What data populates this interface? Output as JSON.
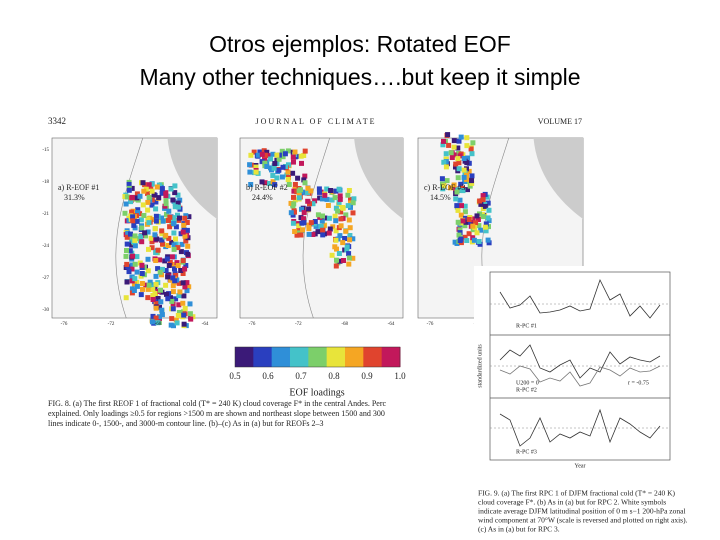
{
  "slide": {
    "title_line1": "Otros ejemplos: Rotated EOF",
    "title_line2": "Many other techniques….but keep it simple"
  },
  "figure": {
    "page_number": "3342",
    "journal": "JOURNAL OF CLIMATE",
    "volume": "VOLUME 17",
    "panels": [
      {
        "label": "a) R-EOF #1",
        "percent": "31.3%"
      },
      {
        "label": "b) R-EOF #2",
        "percent": "24.4%"
      },
      {
        "label": "c) R-EOF #3",
        "percent": "14.5%"
      }
    ],
    "lat_ticks": [
      "-15",
      "-18",
      "-21",
      "-24",
      "-27",
      "-30"
    ],
    "lon_ticks": [
      "-76",
      "-72",
      "-68",
      "-64"
    ],
    "colorbar_ticks": [
      "0.5",
      "0.6",
      "0.7",
      "0.8",
      "0.9",
      "1.0"
    ],
    "colorbar_label": "EOF loadings",
    "caption_lines": [
      "FIG. 8. (a) The first REOF 1 of fractional cold (T* = 240 K) cloud coverage F* in the central Andes. Perc",
      "explained. Only loadings ≥0.5 for regions >1500 m are shown and northeast slope between 1500 and 300",
      "lines indicate 0-, 1500-, and 3000-m contour line. (b)–(c) As in (a) but for REOFs 2–3"
    ]
  },
  "timeseries": {
    "y_label": "standardized units",
    "x_label": "Year",
    "legend": [
      "R-PC #1",
      "R-PC #2",
      "R-PC #3"
    ],
    "u200_label": "U200 = 0",
    "corr_label": "r = -0.75",
    "caption_lines": [
      "FIG. 9. (a) The first RPC 1 of DJFM fractional cold (T* = 240 K)",
      "cloud coverage F*. (b) As in (a) but for RPC 2. White symbols",
      "indicate average DJFM latitudinal position of 0 m s−1 200-hPa zonal",
      "wind component at 70°W (scale is reversed and plotted on right axis).",
      "(c) As in (a) but for RPC 3."
    ]
  }
}
